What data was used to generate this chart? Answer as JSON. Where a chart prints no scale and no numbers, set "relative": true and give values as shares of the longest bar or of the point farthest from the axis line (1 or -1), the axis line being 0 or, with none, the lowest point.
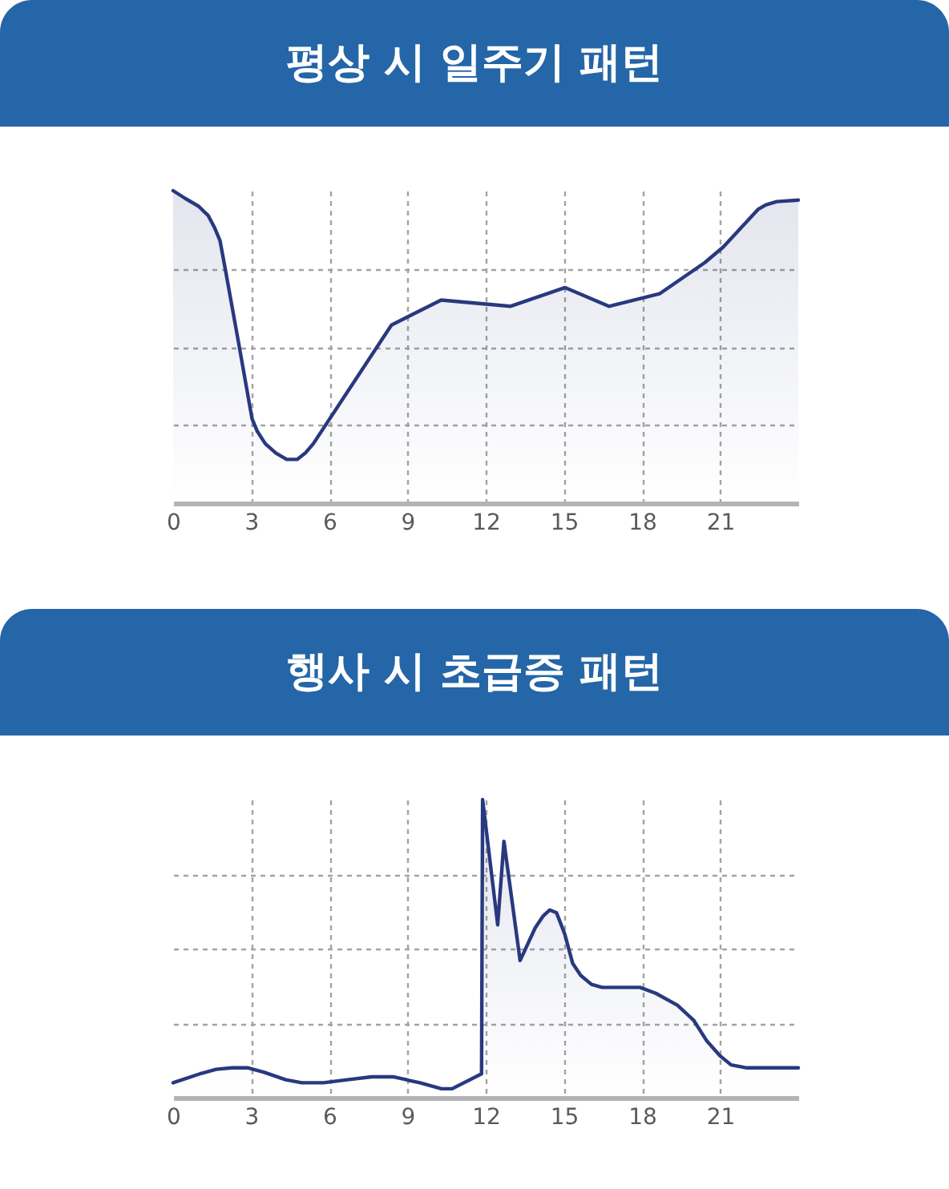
{
  "chart_data": [
    {
      "type": "area",
      "title": "평상 시 일주기 패턴",
      "relative": true,
      "x": [
        0,
        0.47,
        0.98,
        1.35,
        1.6,
        1.8,
        2,
        2.52,
        3.03,
        3.23,
        3.54,
        3.95,
        4.36,
        4.76,
        5.07,
        5.38,
        8.38,
        10.29,
        12.94,
        15.05,
        16.73,
        18.67,
        20.41,
        21.12,
        22.45,
        22.76,
        23.17,
        24
      ],
      "series": [
        {
          "color": "#28397f",
          "values": [
            1,
            0.975,
            0.95,
            0.92,
            0.88,
            0.84,
            0.75,
            0.51,
            0.27,
            0.23,
            0.19,
            0.16,
            0.14,
            0.14,
            0.16,
            0.19,
            0.57,
            0.65,
            0.63,
            0.69,
            0.63,
            0.67,
            0.77,
            0.82,
            0.94,
            0.955,
            0.965,
            0.97
          ]
        }
      ],
      "xlim": [
        0,
        24
      ],
      "xticks": [
        0,
        3,
        6,
        9,
        12,
        15,
        18,
        21
      ],
      "grid": true,
      "tick_labels": "x"
    },
    {
      "type": "area",
      "title": "행사 시 초급증 패턴",
      "relative": true,
      "x": [
        0,
        1.03,
        1.65,
        2.27,
        2.88,
        3.5,
        4.32,
        4.94,
        5.77,
        6.69,
        7.62,
        8.44,
        9.47,
        10.3,
        10.71,
        11.84,
        11.88,
        12.46,
        12.7,
        13.32,
        13.9,
        14.21,
        14.46,
        14.72,
        15.03,
        15.34,
        15.65,
        16.06,
        16.47,
        17.92,
        18.53,
        19.36,
        19.98,
        20.49,
        21,
        21.42,
        22.03,
        24
      ],
      "series": [
        {
          "color": "#28397f",
          "values": [
            0.05,
            0.08,
            0.095,
            0.1,
            0.1,
            0.085,
            0.06,
            0.05,
            0.05,
            0.06,
            0.07,
            0.07,
            0.05,
            0.03,
            0.03,
            0.08,
            1,
            0.58,
            0.86,
            0.46,
            0.57,
            0.61,
            0.63,
            0.62,
            0.55,
            0.45,
            0.41,
            0.38,
            0.37,
            0.37,
            0.35,
            0.31,
            0.26,
            0.19,
            0.14,
            0.11,
            0.1,
            0.1
          ]
        }
      ],
      "xlim": [
        0,
        24
      ],
      "xticks": [
        0,
        3,
        6,
        9,
        12,
        15,
        18,
        21
      ],
      "grid": true,
      "tick_labels": "x"
    }
  ]
}
